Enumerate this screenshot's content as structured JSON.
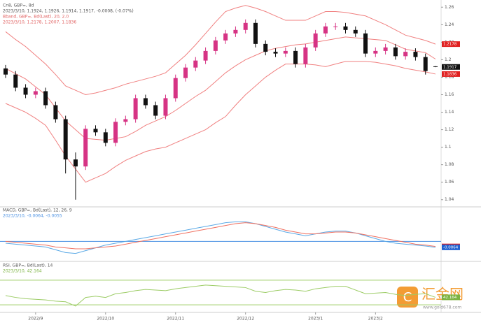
{
  "chart_data": [
    {
      "type": "candlestick",
      "title": "Cn8, GBP=, 8d",
      "subtitle": "2023/3/10, 1.1924, 1.1926, 1.1914, 1.1917, -0.0008, (-0.07%)",
      "legend_lines": [
        "Bband, GBP=, Bd(Last), 20, 2.0",
        "2023/3/10, 1.2178, 1.2007, 1.1836"
      ],
      "categories": [
        null,
        null,
        null,
        "2022/9",
        null,
        null,
        null,
        null,
        null,
        null,
        "2022/10",
        null,
        null,
        null,
        null,
        null,
        null,
        "2022/11",
        null,
        null,
        null,
        null,
        null,
        null,
        "2022/12",
        null,
        null,
        null,
        null,
        null,
        null,
        "2023/1",
        null,
        null,
        null,
        null,
        null,
        "2023/2",
        null,
        null,
        null,
        null,
        null,
        null
      ],
      "open": [
        1.19,
        1.183,
        1.168,
        1.16,
        1.164,
        1.148,
        1.132,
        1.086,
        1.078,
        1.121,
        1.117,
        1.105,
        1.129,
        1.132,
        1.156,
        1.148,
        1.136,
        1.156,
        1.179,
        1.191,
        1.199,
        1.21,
        1.222,
        1.23,
        1.234,
        1.242,
        1.218,
        1.209,
        1.207,
        1.21,
        1.195,
        1.214,
        1.23,
        1.238,
        1.238,
        1.234,
        1.23,
        1.207,
        1.21,
        1.214,
        1.204,
        1.209,
        1.203,
        1.1924
      ],
      "high": [
        1.194,
        1.187,
        1.172,
        1.168,
        1.168,
        1.152,
        1.136,
        1.094,
        1.125,
        1.125,
        1.121,
        1.133,
        1.136,
        1.16,
        1.16,
        1.152,
        1.16,
        1.183,
        1.195,
        1.203,
        1.214,
        1.226,
        1.234,
        1.238,
        1.246,
        1.246,
        1.222,
        1.213,
        1.214,
        1.214,
        1.218,
        1.234,
        1.242,
        1.242,
        1.242,
        1.238,
        1.234,
        1.214,
        1.218,
        1.218,
        1.213,
        1.213,
        1.207,
        1.1926
      ],
      "low": [
        1.179,
        1.164,
        1.156,
        1.156,
        1.144,
        1.128,
        1.07,
        1.04,
        1.074,
        1.113,
        1.101,
        1.101,
        1.125,
        1.128,
        1.144,
        1.132,
        1.132,
        1.152,
        1.175,
        1.187,
        1.195,
        1.206,
        1.218,
        1.226,
        1.23,
        1.214,
        1.205,
        1.203,
        1.203,
        1.191,
        1.191,
        1.21,
        1.226,
        1.234,
        1.23,
        1.226,
        1.203,
        1.203,
        1.206,
        1.2,
        1.2,
        1.199,
        1.183,
        1.1914
      ],
      "close": [
        1.183,
        1.168,
        1.16,
        1.164,
        1.148,
        1.132,
        1.086,
        1.078,
        1.121,
        1.117,
        1.105,
        1.129,
        1.132,
        1.156,
        1.148,
        1.136,
        1.156,
        1.179,
        1.191,
        1.199,
        1.21,
        1.222,
        1.23,
        1.234,
        1.242,
        1.218,
        1.209,
        1.207,
        1.21,
        1.195,
        1.214,
        1.23,
        1.238,
        1.238,
        1.234,
        1.23,
        1.207,
        1.21,
        1.214,
        1.204,
        1.209,
        1.203,
        1.187,
        1.1917
      ],
      "up_color": "#d63384",
      "down_color": "#111111",
      "series": [
        {
          "name": "upper",
          "color": "#f08080",
          "values": [
            1.232,
            1.223,
            1.215,
            1.205,
            1.195,
            1.183,
            1.17,
            1.165,
            1.16,
            1.162,
            1.165,
            1.168,
            1.172,
            1.175,
            1.178,
            1.181,
            1.185,
            1.195,
            1.205,
            1.217,
            1.23,
            1.243,
            1.255,
            1.259,
            1.262,
            1.259,
            1.255,
            1.25,
            1.245,
            1.245,
            1.245,
            1.25,
            1.255,
            1.255,
            1.254,
            1.252,
            1.25,
            1.245,
            1.24,
            1.234,
            1.228,
            1.225,
            1.222,
            1.2178
          ]
        },
        {
          "name": "middle",
          "color": "#f08080",
          "values": [
            1.19,
            1.184,
            1.178,
            1.169,
            1.16,
            1.145,
            1.13,
            1.12,
            1.11,
            1.109,
            1.108,
            1.11,
            1.112,
            1.118,
            1.125,
            1.13,
            1.135,
            1.142,
            1.15,
            1.158,
            1.165,
            1.175,
            1.185,
            1.193,
            1.2,
            1.205,
            1.21,
            1.213,
            1.215,
            1.217,
            1.218,
            1.22,
            1.222,
            1.224,
            1.226,
            1.225,
            1.224,
            1.223,
            1.222,
            1.217,
            1.212,
            1.21,
            1.208,
            1.2007
          ]
        },
        {
          "name": "lower",
          "color": "#f08080",
          "values": [
            1.15,
            1.145,
            1.14,
            1.133,
            1.125,
            1.108,
            1.09,
            1.075,
            1.06,
            1.065,
            1.07,
            1.078,
            1.085,
            1.09,
            1.095,
            1.098,
            1.1,
            1.105,
            1.11,
            1.115,
            1.12,
            1.128,
            1.135,
            1.148,
            1.16,
            1.17,
            1.18,
            1.188,
            1.195,
            1.195,
            1.195,
            1.194,
            1.192,
            1.195,
            1.198,
            1.198,
            1.198,
            1.197,
            1.195,
            1.193,
            1.19,
            1.188,
            1.186,
            1.1836
          ]
        }
      ],
      "ylim": [
        1.035,
        1.265
      ],
      "yticks": [
        1.04,
        1.06,
        1.08,
        1.1,
        1.12,
        1.14,
        1.16,
        1.18,
        1.2,
        1.22,
        1.24,
        1.26
      ],
      "price_labels": [
        {
          "value": 1.2178,
          "label": "1.2178",
          "color": "#e02020"
        },
        {
          "value": 1.1917,
          "label": "1.1917",
          "color": "#111111"
        },
        {
          "value": 1.1836,
          "label": "1.1836",
          "color": "#e02020"
        }
      ]
    },
    {
      "type": "line",
      "title": "MACD, GBP=, Bd(Last), 12, 26, 9",
      "subtitle": "2023/3/10, -0.0064, -0.0055",
      "series": [
        {
          "name": "MACD",
          "color": "#5aa9e6",
          "values": [
            -0.002,
            -0.003,
            -0.004,
            -0.005,
            -0.006,
            -0.009,
            -0.012,
            -0.013,
            -0.01,
            -0.007,
            -0.004,
            -0.002,
            0.0,
            0.002,
            0.004,
            0.006,
            0.008,
            0.01,
            0.012,
            0.014,
            0.016,
            0.018,
            0.02,
            0.021,
            0.021,
            0.019,
            0.016,
            0.013,
            0.01,
            0.008,
            0.006,
            0.008,
            0.01,
            0.011,
            0.011,
            0.009,
            0.006,
            0.003,
            0.0,
            -0.002,
            -0.003,
            -0.004,
            -0.005,
            -0.0064
          ]
        },
        {
          "name": "Signal",
          "color": "#f07060",
          "values": [
            0.0,
            -0.001,
            -0.002,
            -0.003,
            -0.004,
            -0.006,
            -0.007,
            -0.008,
            -0.008,
            -0.007,
            -0.006,
            -0.005,
            -0.003,
            -0.001,
            0.001,
            0.003,
            0.005,
            0.007,
            0.009,
            0.011,
            0.013,
            0.015,
            0.017,
            0.019,
            0.02,
            0.019,
            0.017,
            0.015,
            0.012,
            0.01,
            0.008,
            0.008,
            0.009,
            0.01,
            0.01,
            0.009,
            0.007,
            0.005,
            0.003,
            0.001,
            -0.001,
            -0.003,
            -0.004,
            -0.0055
          ]
        }
      ],
      "ylim": [
        -0.02,
        0.025
      ],
      "hlines": [
        0
      ],
      "hline_color": "#4a90e2",
      "price_labels": [
        {
          "value": -0.0055,
          "label": "-0.0055",
          "color": "#e02020"
        },
        {
          "value": -0.0064,
          "label": "-0.0064",
          "color": "#2060d0"
        }
      ]
    },
    {
      "type": "line",
      "title": "RSI, GBP=, Bd(Last), 14",
      "subtitle": "2023/3/10, 42.164",
      "series": [
        {
          "name": "RSI",
          "color": "#9ccc65",
          "values": [
            45,
            42,
            40,
            39,
            38,
            36,
            35,
            28,
            42,
            44,
            42,
            48,
            50,
            53,
            55,
            54,
            53,
            56,
            58,
            60,
            62,
            61,
            60,
            59,
            58,
            52,
            50,
            53,
            55,
            54,
            52,
            56,
            58,
            60,
            60,
            54,
            48,
            49,
            50,
            47,
            45,
            47,
            48,
            42.164
          ]
        }
      ],
      "ylim": [
        20,
        80
      ],
      "hlines": [
        30,
        70
      ],
      "hline_color": "#9ccc65",
      "price_labels": [
        {
          "value": 42.164,
          "label": "42.164",
          "color": "#7cb342"
        }
      ]
    }
  ],
  "watermark": {
    "brand": "汇金网",
    "url": "www.gold678.com"
  }
}
